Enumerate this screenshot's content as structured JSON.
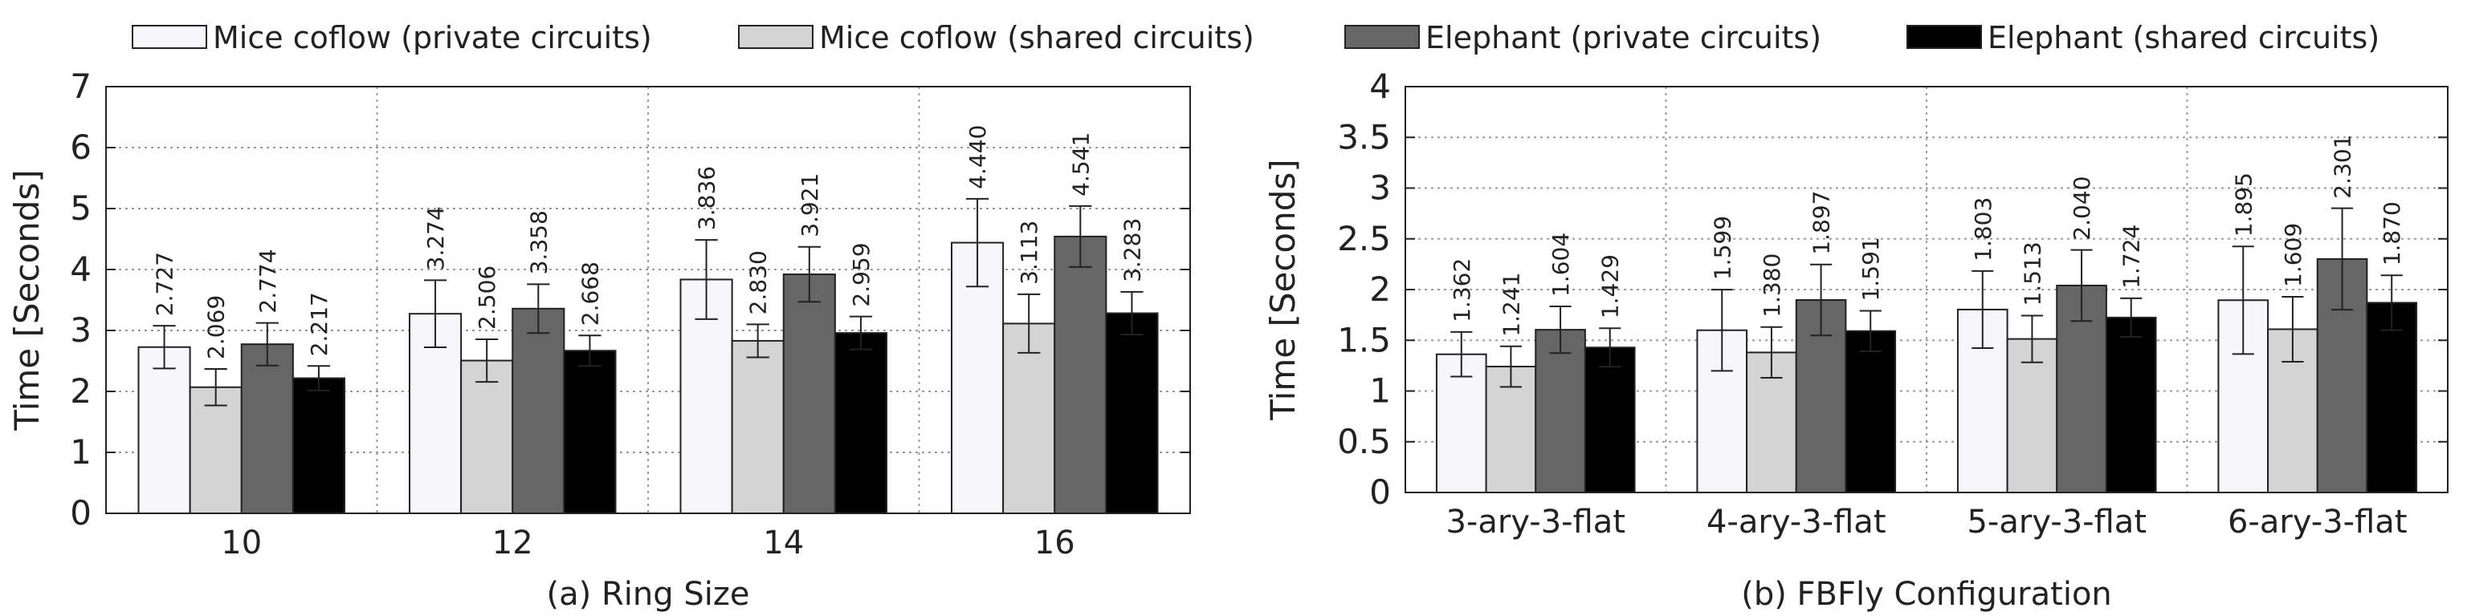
{
  "legend": {
    "entries": [
      {
        "label": "Mice coflow (private circuits)",
        "color": "#f7f7fb"
      },
      {
        "label": "Mice coflow (shared circuits)",
        "color": "#d4d4d4"
      },
      {
        "label": "Elephant (private circuits)",
        "color": "#666666"
      },
      {
        "label": "Elephant (shared circuits)",
        "color": "#000000"
      }
    ],
    "position": "top"
  },
  "chart_data": [
    {
      "type": "bar",
      "title": "",
      "xlabel": "(a) Ring Size",
      "ylabel": "Time [Seconds]",
      "ylim": [
        0,
        7
      ],
      "yticks": [
        "0",
        "1",
        "2",
        "3",
        "4",
        "5",
        "6",
        "7"
      ],
      "grid": true,
      "categories": [
        "10",
        "12",
        "14",
        "16"
      ],
      "series": [
        {
          "name": "Mice coflow (private circuits)",
          "values": [
            2.727,
            3.274,
            3.836,
            4.44
          ],
          "labels": [
            "2.727",
            "3.274",
            "3.836",
            "4.440"
          ],
          "errors": [
            0.35,
            0.55,
            0.65,
            0.72
          ]
        },
        {
          "name": "Mice coflow (shared circuits)",
          "values": [
            2.069,
            2.506,
            2.83,
            3.113
          ],
          "labels": [
            "2.069",
            "2.506",
            "2.830",
            "3.113"
          ],
          "errors": [
            0.3,
            0.35,
            0.27,
            0.48
          ]
        },
        {
          "name": "Elephant (private circuits)",
          "values": [
            2.774,
            3.358,
            3.921,
            4.541
          ],
          "labels": [
            "2.774",
            "3.358",
            "3.921",
            "4.541"
          ],
          "errors": [
            0.35,
            0.4,
            0.45,
            0.5
          ]
        },
        {
          "name": "Elephant (shared circuits)",
          "values": [
            2.217,
            2.668,
            2.959,
            3.283
          ],
          "labels": [
            "2.217",
            "2.668",
            "2.959",
            "3.283"
          ],
          "errors": [
            0.2,
            0.25,
            0.27,
            0.35
          ]
        }
      ]
    },
    {
      "type": "bar",
      "title": "",
      "xlabel": "(b) FBFly Configuration",
      "ylabel": "Time [Seconds]",
      "ylim": [
        0,
        4
      ],
      "yticks": [
        "0",
        "0.5",
        "1",
        "1.5",
        "2",
        "2.5",
        "3",
        "3.5",
        "4"
      ],
      "grid": true,
      "categories": [
        "3-ary-3-flat",
        "4-ary-3-flat",
        "5-ary-3-flat",
        "6-ary-3-flat"
      ],
      "series": [
        {
          "name": "Mice coflow (private circuits)",
          "values": [
            1.362,
            1.599,
            1.803,
            1.895
          ],
          "labels": [
            "1.362",
            "1.599",
            "1.803",
            "1.895"
          ],
          "errors": [
            0.22,
            0.4,
            0.38,
            0.53
          ]
        },
        {
          "name": "Mice coflow (shared circuits)",
          "values": [
            1.241,
            1.38,
            1.513,
            1.609
          ],
          "labels": [
            "1.241",
            "1.380",
            "1.513",
            "1.609"
          ],
          "errors": [
            0.2,
            0.25,
            0.23,
            0.32
          ]
        },
        {
          "name": "Elephant (private circuits)",
          "values": [
            1.604,
            1.897,
            2.04,
            2.301
          ],
          "labels": [
            "1.604",
            "1.897",
            "2.040",
            "2.301"
          ],
          "errors": [
            0.23,
            0.35,
            0.35,
            0.5
          ]
        },
        {
          "name": "Elephant (shared circuits)",
          "values": [
            1.429,
            1.591,
            1.724,
            1.87
          ],
          "labels": [
            "1.429",
            "1.591",
            "1.724",
            "1.870"
          ],
          "errors": [
            0.19,
            0.2,
            0.19,
            0.27
          ]
        }
      ]
    }
  ]
}
